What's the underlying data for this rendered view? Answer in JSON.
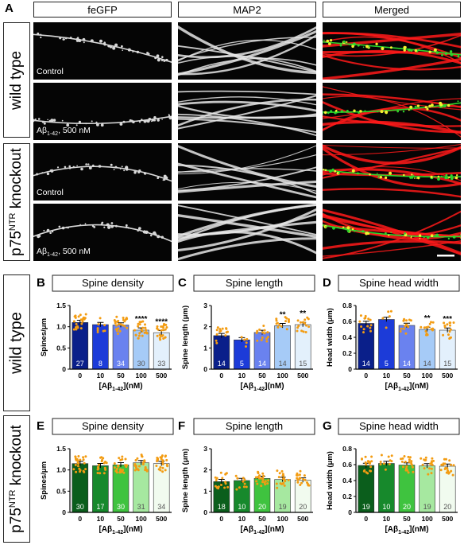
{
  "figure_a": {
    "label": "A",
    "columns": [
      "feGFP",
      "MAP2",
      "Merged"
    ],
    "groups": [
      {
        "label_main": "wild type",
        "label_sup": ""
      },
      {
        "label_main": "p75",
        "label_sup": "NTR",
        "label_rest": " knockout"
      }
    ],
    "captions": {
      "control": "Control",
      "abeta_prefix": "Aβ",
      "abeta_sub": "1-42",
      "abeta_suffix": ", 500 nM"
    },
    "colors": {
      "map2": "#ff1a1a",
      "gfp": "#2bd62b",
      "overlap": "#f2f230"
    }
  },
  "section_labels": {
    "wt": "wild type",
    "ko_main": "p75",
    "ko_sup": "NTR",
    "ko_rest": " knockout"
  },
  "chart_data": [
    {
      "panel": "B",
      "title": "Spine density",
      "type": "bar",
      "ylabel": "Spines/μm",
      "ylim": [
        0,
        1.5
      ],
      "yticks": [
        "0",
        "0.5",
        "1.0",
        "1.5"
      ],
      "categories": [
        "0",
        "10",
        "50",
        "100",
        "500"
      ],
      "xlabel_prefix": "[Aβ",
      "xlabel_sub": "1-42",
      "xlabel_suffix": "](nM)",
      "values": [
        1.1,
        1.05,
        1.04,
        0.92,
        0.86
      ],
      "n": [
        "27",
        "8",
        "34",
        "30",
        "33"
      ],
      "significance": [
        "",
        "",
        "",
        "****",
        "****"
      ],
      "colors": [
        "#0a1f8a",
        "#1c3bd8",
        "#6a82ef",
        "#a6cbf7",
        "#e3f0fc"
      ]
    },
    {
      "panel": "C",
      "title": "Spine length",
      "type": "bar",
      "ylabel": "Spine length (μm)",
      "ylim": [
        0,
        3
      ],
      "yticks": [
        "0",
        "1",
        "2",
        "3"
      ],
      "categories": [
        "0",
        "10",
        "50",
        "100",
        "500"
      ],
      "xlabel_prefix": "[Aβ",
      "xlabel_sub": "1-42",
      "xlabel_suffix": "](nM)",
      "values": [
        1.58,
        1.38,
        1.73,
        2.05,
        2.1
      ],
      "n": [
        "14",
        "5",
        "14",
        "14",
        "15"
      ],
      "significance": [
        "",
        "",
        "",
        "**",
        "**"
      ],
      "colors": [
        "#0a1f8a",
        "#1c3bd8",
        "#6a82ef",
        "#a6cbf7",
        "#e3f0fc"
      ]
    },
    {
      "panel": "D",
      "title": "Spine head width",
      "type": "bar",
      "ylabel": "Head width (μm)",
      "ylim": [
        0,
        0.8
      ],
      "yticks": [
        "0",
        "0.2",
        "0.4",
        "0.6",
        "0.8"
      ],
      "categories": [
        "0",
        "10",
        "50",
        "100",
        "500"
      ],
      "xlabel_prefix": "[Aβ",
      "xlabel_sub": "1-42",
      "xlabel_suffix": "](nM)",
      "values": [
        0.575,
        0.625,
        0.55,
        0.5,
        0.49
      ],
      "n": [
        "14",
        "5",
        "14",
        "14",
        "15"
      ],
      "significance": [
        "",
        "",
        "",
        "**",
        "***"
      ],
      "colors": [
        "#0a1f8a",
        "#1c3bd8",
        "#6a82ef",
        "#a6cbf7",
        "#e3f0fc"
      ]
    },
    {
      "panel": "E",
      "title": "Spine density",
      "type": "bar",
      "ylabel": "Spines/μm",
      "ylim": [
        0,
        1.5
      ],
      "yticks": [
        "0",
        "0.5",
        "1.0",
        "1.5"
      ],
      "categories": [
        "0",
        "10",
        "50",
        "100",
        "500"
      ],
      "xlabel_prefix": "[Aβ",
      "xlabel_sub": "1-42",
      "xlabel_suffix": "](nM)",
      "values": [
        1.15,
        1.1,
        1.12,
        1.17,
        1.15
      ],
      "n": [
        "30",
        "17",
        "30",
        "31",
        "34"
      ],
      "significance": [
        "",
        "",
        "",
        "",
        ""
      ],
      "colors": [
        "#0b5e1c",
        "#17892c",
        "#3fc33f",
        "#a6e8a0",
        "#f1fbef"
      ]
    },
    {
      "panel": "F",
      "title": "Spine length",
      "type": "bar",
      "ylabel": "Spine length (μm)",
      "ylim": [
        0,
        3
      ],
      "yticks": [
        "0",
        "1",
        "2",
        "3"
      ],
      "categories": [
        "0",
        "10",
        "50",
        "100",
        "500"
      ],
      "xlabel_prefix": "[Aβ",
      "xlabel_sub": "1-42",
      "xlabel_suffix": "](nM)",
      "values": [
        1.45,
        1.5,
        1.6,
        1.55,
        1.52
      ],
      "n": [
        "18",
        "10",
        "20",
        "19",
        "20"
      ],
      "significance": [
        "",
        "",
        "",
        "",
        ""
      ],
      "colors": [
        "#0b5e1c",
        "#17892c",
        "#3fc33f",
        "#a6e8a0",
        "#f1fbef"
      ]
    },
    {
      "panel": "G",
      "title": "Spine head width",
      "type": "bar",
      "ylabel": "Head width (μm)",
      "ylim": [
        0,
        0.8
      ],
      "yticks": [
        "0",
        "0.2",
        "0.4",
        "0.6",
        "0.8"
      ],
      "categories": [
        "0",
        "10",
        "50",
        "100",
        "500"
      ],
      "xlabel_prefix": "[Aβ",
      "xlabel_sub": "1-42",
      "xlabel_suffix": "](nM)",
      "values": [
        0.59,
        0.615,
        0.595,
        0.585,
        0.58
      ],
      "n": [
        "19",
        "10",
        "20",
        "19",
        "20"
      ],
      "significance": [
        "",
        "",
        "",
        "",
        ""
      ],
      "colors": [
        "#0b5e1c",
        "#17892c",
        "#3fc33f",
        "#a6e8a0",
        "#f1fbef"
      ]
    }
  ]
}
